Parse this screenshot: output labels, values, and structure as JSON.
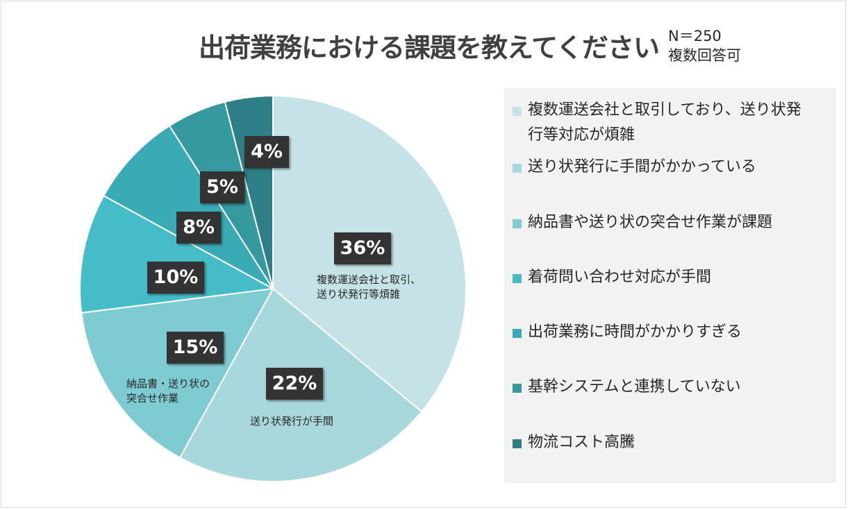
{
  "title": "出荷業務における課題を教えてください",
  "meta": {
    "n": "N＝250",
    "note": "複数回答可"
  },
  "chart_data": {
    "type": "pie",
    "title": "出荷業務における課題を教えてください",
    "slices": [
      {
        "label": "複数運送会社と取引しており、送り状発行等対応が煩雑",
        "value": 36,
        "pct_label": "36%",
        "color": "#c5e3e6",
        "chart_label_lines": [
          "複数運送会社と取引、",
          "送り状発行等煩雑"
        ]
      },
      {
        "label": "送り状発行に手間がかかっている",
        "value": 22,
        "pct_label": "22%",
        "color": "#a8d8dc",
        "chart_label_lines": [
          "送り状発行が手間"
        ]
      },
      {
        "label": "納品書や送り状の突合せ作業が課題",
        "value": 15,
        "pct_label": "15%",
        "color": "#7ecbd2",
        "chart_label_lines": [
          "納品書・送り状の",
          "突合せ作業"
        ]
      },
      {
        "label": "着荷問い合わせ対応が手間",
        "value": 10,
        "pct_label": "10%",
        "color": "#45bcc7",
        "chart_label_lines": []
      },
      {
        "label": "出荷業務に時間がかかりすぎる",
        "value": 8,
        "pct_label": "8%",
        "color": "#3aaab4",
        "chart_label_lines": []
      },
      {
        "label": "基幹システムと連携していない",
        "value": 5,
        "pct_label": "5%",
        "color": "#35999f",
        "chart_label_lines": []
      },
      {
        "label": "物流コスト高騰",
        "value": 4,
        "pct_label": "4%",
        "color": "#2e7f88",
        "chart_label_lines": []
      }
    ],
    "legend": {
      "position": "right",
      "lines": [
        [
          "複数運送会社と取引しており、送り状発",
          "行等対応が煩雑"
        ],
        [
          "送り状発行に手間がかかっている"
        ],
        [
          "納品書や送り状の突合せ作業が課題"
        ],
        [
          "着荷問い合わせ対応が手間"
        ],
        [
          "出荷業務に時間がかかりすぎる"
        ],
        [
          "基幹システムと連携していない"
        ],
        [
          "物流コスト高騰"
        ]
      ]
    }
  }
}
